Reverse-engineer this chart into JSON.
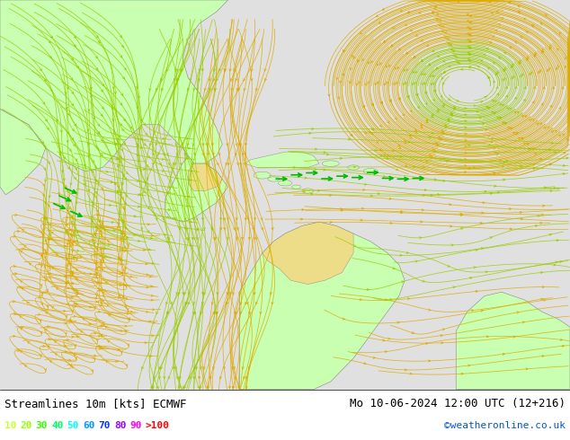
{
  "title_left": "Streamlines 10m [kts] ECMWF",
  "title_right": "Mo 10-06-2024 12:00 UTC (12+216)",
  "watermark": "©weatheronline.co.uk",
  "legend_labels": [
    "10",
    "20",
    "30",
    "40",
    "50",
    "60",
    "70",
    "80",
    "90",
    ">100"
  ],
  "legend_colors": [
    "#ccff33",
    "#99ff00",
    "#33ff00",
    "#00ff66",
    "#00ffff",
    "#0099ff",
    "#0033ff",
    "#9900ff",
    "#ff00ff",
    "#ff0000"
  ],
  "ocean_bg": "#e8e8e8",
  "land_green": "#ccffaa",
  "land_yellow": "#eedd88",
  "streamline_yellow": "#ddaa00",
  "streamline_green": "#99cc00",
  "streamline_bright_green": "#00bb00",
  "figsize": [
    6.34,
    4.9
  ],
  "dpi": 100,
  "bottom_bar_color": "#ffffff",
  "text_color": "#000000",
  "watermark_color": "#0055cc",
  "font_size_title": 9,
  "font_size_legend": 8,
  "font_size_watermark": 8
}
